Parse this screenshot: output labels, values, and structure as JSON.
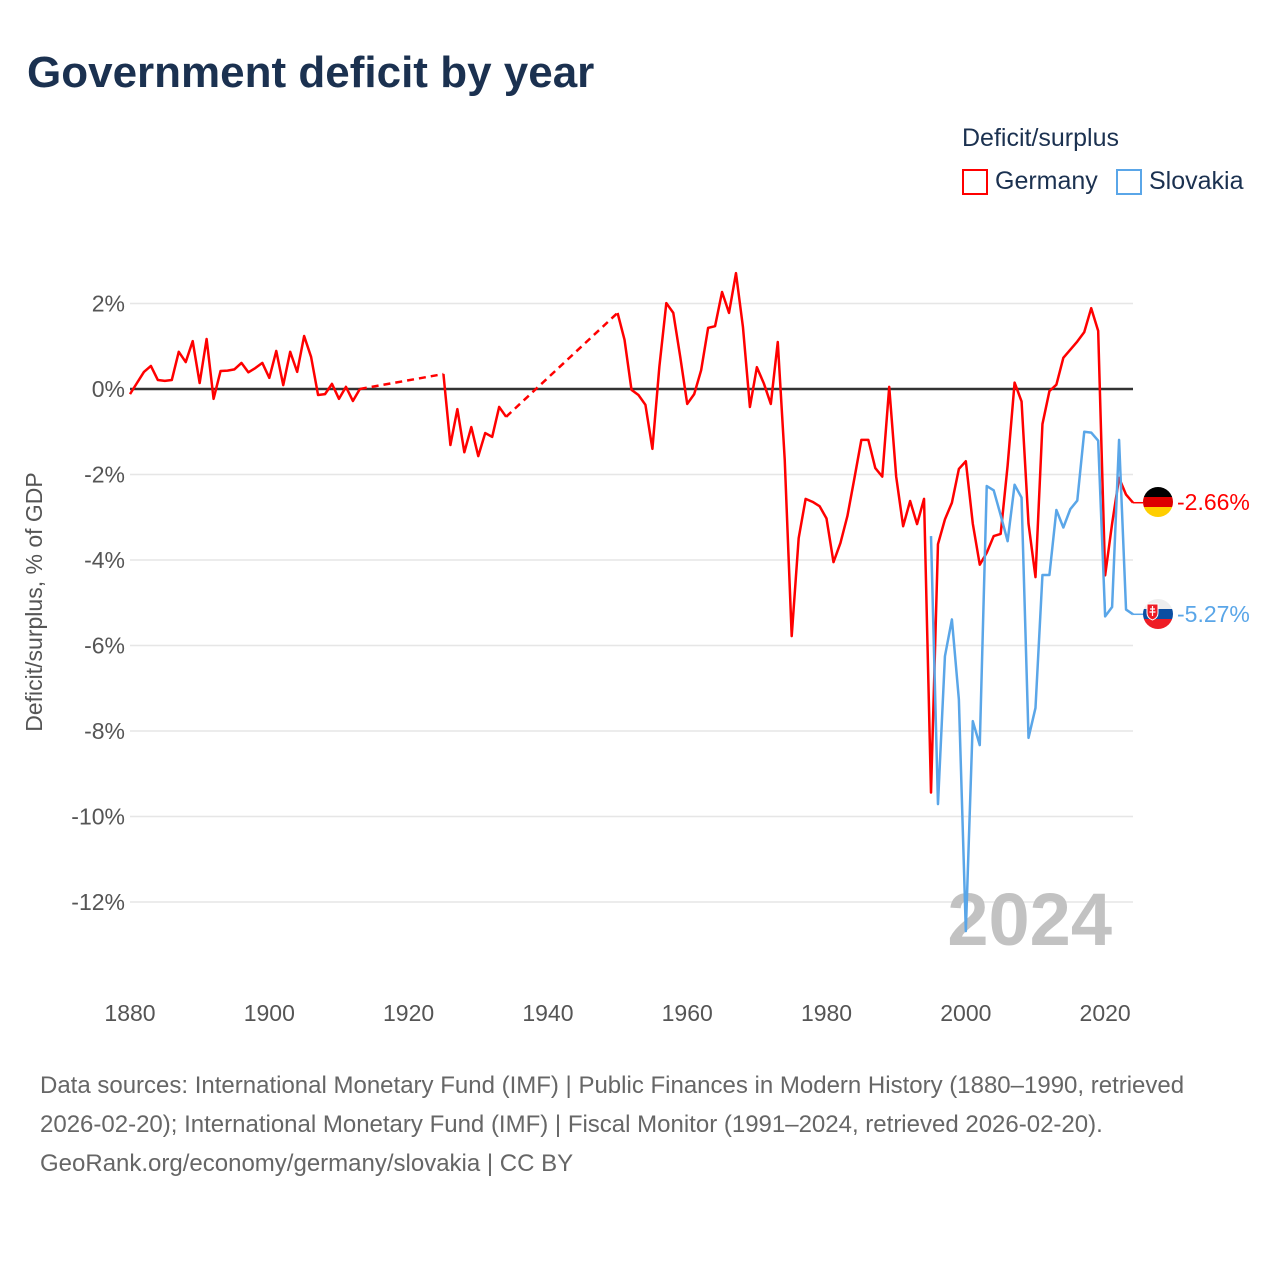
{
  "title": "Government deficit by year",
  "legend": {
    "title": "Deficit/surplus",
    "items": [
      {
        "label": "Germany",
        "color": "#ff0000"
      },
      {
        "label": "Slovakia",
        "color": "#5aa6e8"
      }
    ]
  },
  "watermark_year": "2024",
  "end_labels": {
    "germany": "-2.66%",
    "slovakia": "-5.27%"
  },
  "footer": {
    "sources": "Data sources: International Monetary Fund (IMF) | Public Finances in Modern History (1880–1990, retrieved 2026-02-20); International Monetary Fund (IMF) | Fiscal Monitor (1991–2024, retrieved 2026-02-20).",
    "credit": "GeoRank.org/economy/germany/slovakia | CC BY"
  },
  "chart_data": {
    "type": "line",
    "title": "Government deficit by year",
    "xlabel": "",
    "ylabel": "Deficit/surplus, % of GDP",
    "xlim": [
      1880,
      2024
    ],
    "ylim": [
      -13.5,
      3.2
    ],
    "x_ticks": [
      1880,
      1900,
      1920,
      1940,
      1960,
      1980,
      2000,
      2020
    ],
    "x_tick_labels": [
      "1880",
      "1900",
      "1920",
      "1940",
      "1960",
      "1980",
      "2000",
      "2020"
    ],
    "y_ticks": [
      2,
      0,
      -2,
      -4,
      -6,
      -8,
      -10,
      -12
    ],
    "y_tick_labels": [
      "2%",
      "0%",
      "-2%",
      "-4%",
      "-6%",
      "-8%",
      "-10%",
      "-12%"
    ],
    "grid": true,
    "legend_position": "top-right",
    "gaps_drawn_dashed": true,
    "series": [
      {
        "name": "Germany",
        "color": "#ff0000",
        "start_year": 1880,
        "values": [
          -0.12,
          0.14,
          0.4,
          0.54,
          0.21,
          0.19,
          0.21,
          0.87,
          0.63,
          1.12,
          0.14,
          1.17,
          -0.23,
          0.42,
          0.43,
          0.46,
          0.61,
          0.39,
          0.49,
          0.61,
          0.26,
          0.89,
          0.09,
          0.87,
          0.4,
          1.24,
          0.75,
          -0.14,
          -0.12,
          0.12,
          -0.23,
          0.05,
          -0.28,
          0.0,
          null,
          null,
          null,
          null,
          null,
          null,
          null,
          null,
          null,
          null,
          null,
          0.35,
          -1.31,
          -0.47,
          -1.48,
          -0.89,
          -1.57,
          -1.03,
          -1.12,
          -0.42,
          -0.65,
          null,
          null,
          null,
          null,
          null,
          null,
          null,
          null,
          null,
          null,
          null,
          null,
          null,
          null,
          null,
          1.78,
          1.15,
          -0.02,
          -0.14,
          -0.37,
          -1.4,
          0.52,
          2.01,
          1.78,
          0.75,
          -0.35,
          -0.12,
          0.44,
          1.43,
          1.47,
          2.27,
          1.78,
          2.71,
          1.45,
          -0.42,
          0.51,
          0.13,
          -0.35,
          1.1,
          -1.66,
          -5.78,
          -3.49,
          -2.57,
          -2.64,
          -2.74,
          -3.03,
          -4.05,
          -3.6,
          -2.97,
          -2.09,
          -1.19,
          -1.19,
          -1.85,
          -2.05,
          0.05,
          -2.05,
          -3.21,
          -2.62,
          -3.16,
          -2.57,
          -9.44,
          -3.63,
          -3.05,
          -2.66,
          -1.87,
          -1.69,
          -3.15,
          -4.11,
          -3.83,
          -3.44,
          -3.39,
          -1.79,
          0.15,
          -0.29,
          -3.15,
          -4.4,
          -0.82,
          -0.05,
          0.1,
          0.73,
          0.92,
          1.11,
          1.33,
          1.89,
          1.36,
          -4.36,
          -3.15,
          -2.08,
          -2.47,
          -2.66
        ]
      },
      {
        "name": "Slovakia",
        "color": "#5aa6e8",
        "start_year": 1995,
        "values": [
          -3.44,
          -9.71,
          -6.25,
          -5.39,
          -7.26,
          -12.68,
          -7.77,
          -8.33,
          -2.27,
          -2.37,
          -2.95,
          -3.56,
          -2.24,
          -2.54,
          -8.16,
          -7.46,
          -4.35,
          -4.35,
          -2.83,
          -3.24,
          -2.81,
          -2.61,
          -1.0,
          -1.02,
          -1.21,
          -5.32,
          -5.1,
          -1.19,
          -5.16,
          -5.27
        ]
      }
    ]
  }
}
